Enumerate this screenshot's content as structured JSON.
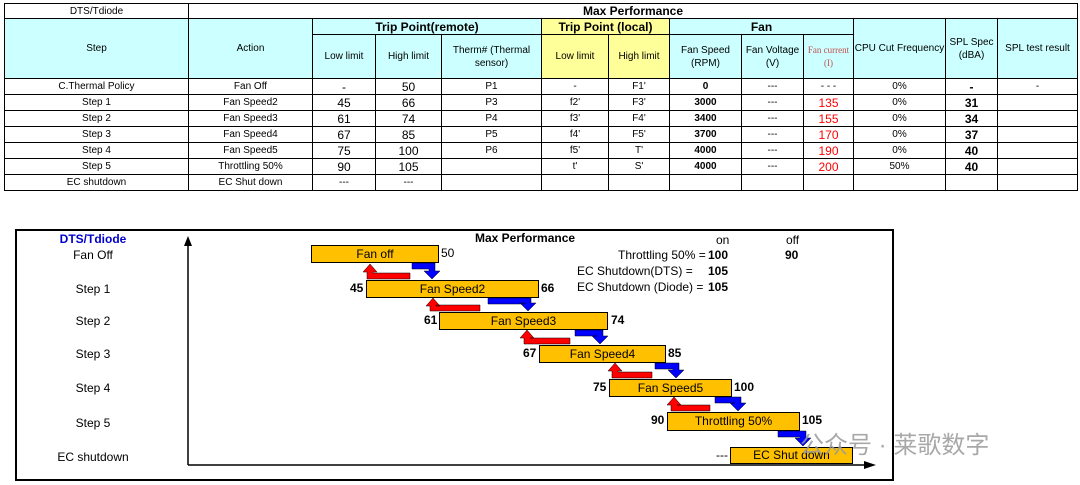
{
  "partial_header": "DTS/Tdiode",
  "table": {
    "title": "Max Performance",
    "col_step": "Step",
    "col_action": "Action",
    "group_remote": "Trip Point(remote)",
    "group_local": "Trip Point (local)",
    "group_fan": "Fan",
    "col_low_limit": "Low limit",
    "col_high_limit": "High limit",
    "col_therm": "Therm# (Thermal sensor)",
    "col_local_low": "Low limit",
    "col_local_high": "High limit",
    "col_fan_speed": "Fan Speed (RPM)",
    "col_fan_voltage": "Fan Voltage (V)",
    "col_fan_current": "Fan current (I)",
    "col_cpu_cut": "CPU Cut Frequency",
    "col_spl_spec": "SPL Spec (dBA)",
    "col_spl_result": "SPL test result",
    "rows": [
      {
        "step": "C.Thermal Policy",
        "action": "Fan Off",
        "low": "-",
        "high": "50",
        "therm": "P1",
        "llow": "-",
        "lhigh": "F1'",
        "rpm": "0",
        "volt": "---",
        "current": "- - -",
        "cpu": "0%",
        "spl": "-",
        "result": "-"
      },
      {
        "step": "Step 1",
        "action": "Fan Speed2",
        "low": "45",
        "high": "66",
        "therm": "P3",
        "llow": "f2'",
        "lhigh": "F3'",
        "rpm": "3000",
        "volt": "---",
        "current": "135",
        "cpu": "0%",
        "spl": "31",
        "result": ""
      },
      {
        "step": "Step 2",
        "action": "Fan Speed3",
        "low": "61",
        "high": "74",
        "therm": "P4",
        "llow": "f3'",
        "lhigh": "F4'",
        "rpm": "3400",
        "volt": "---",
        "current": "155",
        "cpu": "0%",
        "spl": "34",
        "result": ""
      },
      {
        "step": "Step 3",
        "action": "Fan Speed4",
        "low": "67",
        "high": "85",
        "therm": "P5",
        "llow": "f4'",
        "lhigh": "F5'",
        "rpm": "3700",
        "volt": "---",
        "current": "170",
        "cpu": "0%",
        "spl": "37",
        "result": ""
      },
      {
        "step": "Step 4",
        "action": "Fan Speed5",
        "low": "75",
        "high": "100",
        "therm": "P6",
        "llow": "f5'",
        "lhigh": "T'",
        "rpm": "4000",
        "volt": "---",
        "current": "190",
        "cpu": "0%",
        "spl": "40",
        "result": ""
      },
      {
        "step": "Step 5",
        "action": "Throttling 50%",
        "low": "90",
        "high": "105",
        "therm": "",
        "llow": "t'",
        "lhigh": "S'",
        "rpm": "4000",
        "volt": "---",
        "current": "200",
        "cpu": "50%",
        "spl": "40",
        "result": ""
      },
      {
        "step": "EC shutdown",
        "action": "EC Shut down",
        "low": "---",
        "high": "---",
        "therm": "",
        "llow": "",
        "lhigh": "",
        "rpm": "",
        "volt": "",
        "current": "",
        "cpu": "",
        "spl": "",
        "result": ""
      }
    ]
  },
  "diagram": {
    "axis_title": "DTS/Tdiode",
    "title": "Max Performance",
    "on_label": "on",
    "off_label": "off",
    "throttling_text": "Throttling 50% =",
    "throttling_on": "100",
    "throttling_off": "90",
    "ec_dts_text": "EC Shutdown(DTS)  =",
    "ec_dts_value": "105",
    "ec_diode_text": "EC Shutdown (Diode) =",
    "ec_diode_value": "105",
    "row_labels": [
      "Fan Off",
      "Step 1",
      "Step 2",
      "Step 3",
      "Step 4",
      "Step 5",
      "EC shutdown"
    ],
    "bars": [
      {
        "label": "Fan off",
        "low": "",
        "high": "50"
      },
      {
        "label": "Fan Speed2",
        "low": "45",
        "high": "66"
      },
      {
        "label": "Fan Speed3",
        "low": "61",
        "high": "74"
      },
      {
        "label": "Fan Speed4",
        "low": "67",
        "high": "85"
      },
      {
        "label": "Fan Speed5",
        "low": "75",
        "high": "100"
      },
      {
        "label": "Throttling 50%",
        "low": "90",
        "high": "105"
      },
      {
        "label": "EC Shut down",
        "low": "---",
        "high": ""
      }
    ],
    "colors": {
      "bar": "#ffc000",
      "up_arrow": "#ff0000",
      "down_arrow": "#0000ff",
      "axis_title": "#0000cc"
    }
  },
  "watermark": "公众号 · 莱歌数字"
}
